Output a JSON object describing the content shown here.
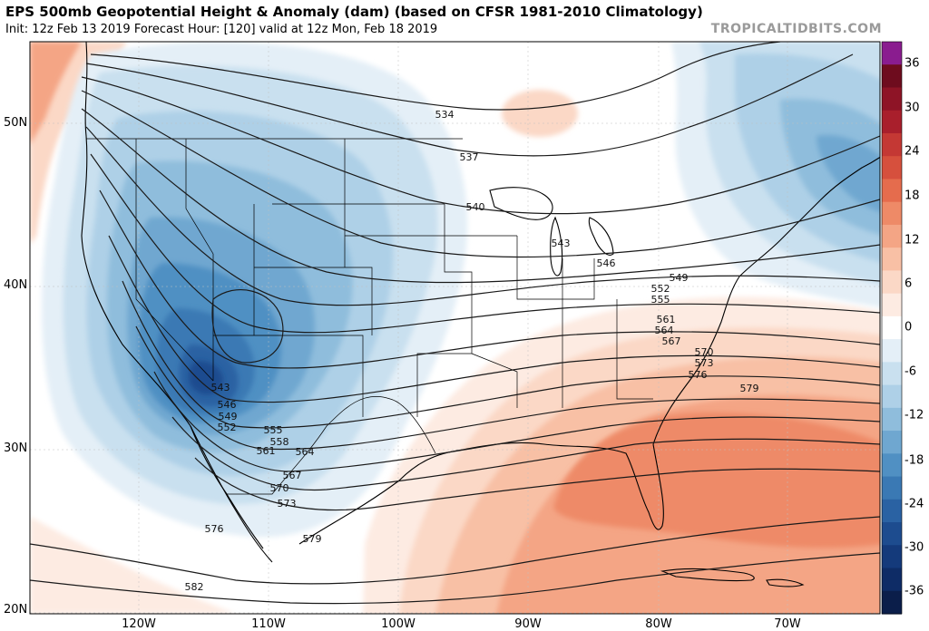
{
  "header": {
    "title": "EPS 500mb Geopotential Height & Anomaly (dam) (based on CFSR 1981-2010 Climatology)",
    "subtitle": "Init: 12z Feb 13 2019   Forecast Hour: [120]   valid at 12z Mon, Feb 18 2019",
    "brand": "TROPICALTIDBITS.COM"
  },
  "map": {
    "region": "North America / CONUS",
    "latitude_labels": [
      "50N",
      "40N",
      "30N",
      "20N"
    ],
    "longitude_labels": [
      "120W",
      "110W",
      "100W",
      "90W",
      "80W",
      "70W"
    ],
    "contour_labels": [
      "534",
      "537",
      "540",
      "543",
      "546",
      "549",
      "552",
      "555",
      "561",
      "564",
      "567",
      "570",
      "573",
      "576",
      "579",
      "543",
      "546",
      "549",
      "552",
      "555",
      "558",
      "561",
      "564",
      "567",
      "570",
      "573",
      "576",
      "579",
      "582"
    ],
    "anomaly_features": [
      {
        "kind": "negative",
        "label": "Deep trough over Southwest US",
        "min_dam": -27
      },
      {
        "kind": "negative",
        "label": "Trough over New England / Atlantic Canada",
        "min_dam": -15
      },
      {
        "kind": "positive",
        "label": "Ridge over Southeast US / Gulf / Florida",
        "max_dam": 15
      },
      {
        "kind": "positive",
        "label": "Ridge over Pacific NW coast",
        "max_dam": 9
      }
    ]
  },
  "colorbar": {
    "units": "dam",
    "ticks": [
      "36",
      "30",
      "24",
      "18",
      "12",
      "6",
      "0",
      "-6",
      "-12",
      "-18",
      "-24",
      "-30",
      "-36"
    ],
    "colors": {
      "p36": "#8a1c8f",
      "p33": "#6e0c1e",
      "p30": "#8e1426",
      "p27": "#a91f2c",
      "p24": "#c43834",
      "p21": "#d6503d",
      "p18": "#e56c4d",
      "p15": "#ee8a67",
      "p12": "#f4a585",
      "p9": "#f8c0a5",
      "p6": "#fbd8c6",
      "p3": "#fdebe2",
      "zero": "#ffffff",
      "m3": "#e4eff7",
      "m6": "#c9e0ef",
      "m9": "#aed0e7",
      "m12": "#8fbddc",
      "m15": "#6fa7d0",
      "m18": "#5090c3",
      "m21": "#3a79b4",
      "m24": "#2a62a3",
      "m27": "#1d4c8f",
      "m30": "#143a7b",
      "m33": "#0e2c66",
      "m36": "#0b1e4a"
    }
  }
}
